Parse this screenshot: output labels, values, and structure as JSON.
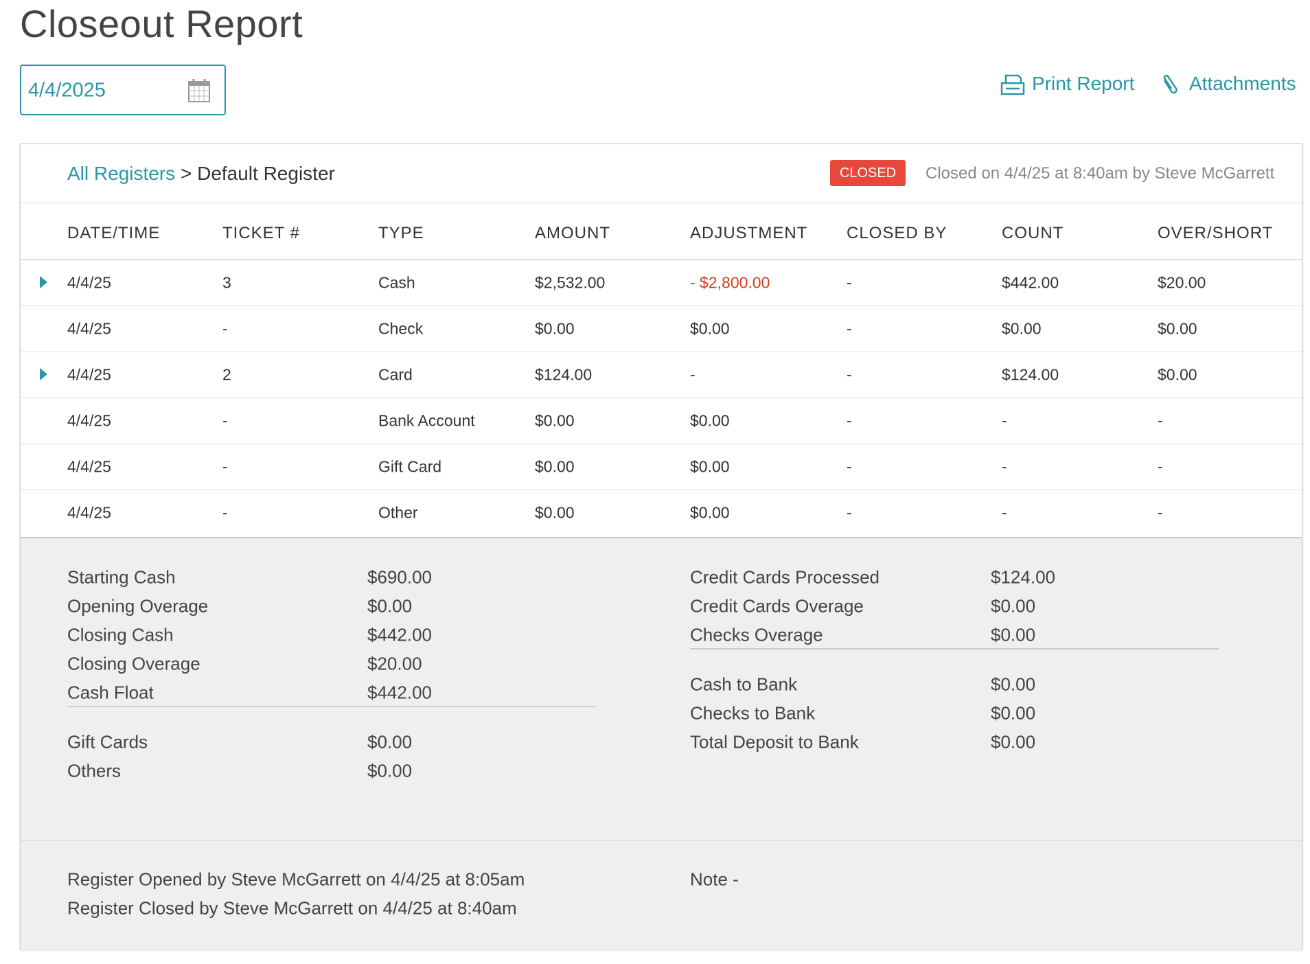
{
  "header": {
    "title": "Closeout Report",
    "date": "4/4/2025",
    "actions": [
      "Print Report",
      "Attachments"
    ]
  },
  "breadcrumb": {
    "link": "All Registers",
    "separator": ">",
    "current": "Default Register"
  },
  "status": {
    "badge": "CLOSED",
    "info": "Closed on 4/4/25 at 8:40am by Steve McGarrett"
  },
  "table": {
    "columns": [
      "DATE/TIME",
      "TICKET #",
      "TYPE",
      "AMOUNT",
      "ADJUSTMENT",
      "CLOSED BY",
      "COUNT",
      "OVER/SHORT"
    ],
    "rows": [
      {
        "expandable": true,
        "cells": [
          "4/4/25",
          "3",
          "Cash",
          "$2,532.00",
          "- $2,800.00",
          "-",
          "$442.00",
          "$20.00"
        ]
      },
      {
        "expandable": false,
        "cells": [
          "4/4/25",
          "-",
          "Check",
          "$0.00",
          "$0.00",
          "-",
          "$0.00",
          "$0.00"
        ]
      },
      {
        "expandable": true,
        "cells": [
          "4/4/25",
          "2",
          "Card",
          "$124.00",
          "-",
          "-",
          "$124.00",
          "$0.00"
        ]
      },
      {
        "expandable": false,
        "cells": [
          "4/4/25",
          "-",
          "Bank Account",
          "$0.00",
          "$0.00",
          "-",
          "-",
          "-"
        ]
      },
      {
        "expandable": false,
        "cells": [
          "4/4/25",
          "-",
          "Gift Card",
          "$0.00",
          "$0.00",
          "-",
          "-",
          "-"
        ]
      },
      {
        "expandable": false,
        "cells": [
          "4/4/25",
          "-",
          "Other",
          "$0.00",
          "$0.00",
          "-",
          "-",
          "-"
        ]
      }
    ]
  },
  "summary": {
    "left": [
      [
        {
          "label": "Starting Cash",
          "value": "$690.00"
        },
        {
          "label": "Opening Overage",
          "value": "$0.00"
        },
        {
          "label": "Closing Cash",
          "value": "$442.00"
        },
        {
          "label": "Closing Overage",
          "value": "$20.00"
        },
        {
          "label": "Cash Float",
          "value": "$442.00"
        }
      ],
      [
        {
          "label": "Gift Cards",
          "value": "$0.00"
        },
        {
          "label": "Others",
          "value": "$0.00"
        }
      ]
    ],
    "right": [
      [
        {
          "label": "Credit Cards Processed",
          "value": "$124.00"
        },
        {
          "label": "Credit Cards Overage",
          "value": "$0.00"
        },
        {
          "label": "Checks Overage",
          "value": "$0.00"
        }
      ],
      [
        {
          "label": "Cash to Bank",
          "value": "$0.00"
        },
        {
          "label": "Checks to Bank",
          "value": "$0.00"
        },
        {
          "label": "Total Deposit to Bank",
          "value": "$0.00"
        }
      ]
    ]
  },
  "footer": {
    "log": [
      "Register Opened by Steve McGarrett on 4/4/25 at 8:05am",
      "Register Closed by Steve McGarrett on 4/4/25 at 8:40am"
    ],
    "note": "Note -"
  }
}
